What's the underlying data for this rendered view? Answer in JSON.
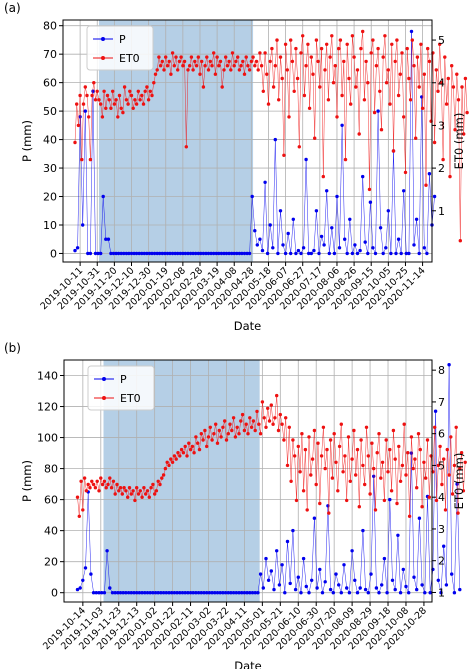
{
  "colors": {
    "p": "#0000ee",
    "et0": "#ee1111",
    "shade": "#b5cfe6",
    "grid": "#b0b0b0"
  },
  "chart_data": [
    {
      "type": "line",
      "panel_label": "(a)",
      "xlabel": "Date",
      "ylabel_left": "P (mm)",
      "ylabel_right": "ET0 (mm)",
      "grid": true,
      "legend_position": "top-left",
      "x_range": [
        "2019-09-21",
        "2020-11-25"
      ],
      "ylim_left": [
        -3,
        82
      ],
      "ylim_right": [
        -0.2,
        5.47
      ],
      "yticks_left": [
        0,
        10,
        20,
        30,
        40,
        50,
        60,
        70,
        80
      ],
      "yticks_right": [
        1,
        2,
        3,
        4,
        5
      ],
      "xticks": [
        "2019-10-11",
        "2019-10-31",
        "2019-11-20",
        "2019-12-10",
        "2019-12-30",
        "2020-01-19",
        "2020-02-08",
        "2020-02-28",
        "2020-03-19",
        "2020-04-08",
        "2020-04-28",
        "2020-05-18",
        "2020-06-07",
        "2020-06-27",
        "2020-07-17",
        "2020-08-06",
        "2020-08-26",
        "2020-09-15",
        "2020-10-05",
        "2020-10-25",
        "2020-11-14"
      ],
      "shaded_period": [
        "2019-11-02",
        "2020-04-30"
      ],
      "series": [
        {
          "name": "P",
          "axis": "left",
          "x_start": "2019-10-05",
          "x_step_days": 3,
          "values": [
            1,
            2,
            48,
            10,
            50,
            0,
            0,
            57,
            0,
            0,
            0,
            20,
            5,
            5,
            0,
            0,
            0,
            0,
            0,
            0,
            0,
            0,
            0,
            0,
            0,
            0,
            0,
            0,
            0,
            0,
            0,
            0,
            0,
            0,
            0,
            0,
            0,
            0,
            0,
            0,
            0,
            0,
            0,
            0,
            0,
            0,
            0,
            0,
            0,
            0,
            0,
            0,
            0,
            0,
            0,
            0,
            0,
            0,
            0,
            0,
            0,
            0,
            0,
            0,
            0,
            0,
            0,
            0,
            0,
            20,
            8,
            3,
            5,
            1,
            25,
            0,
            10,
            2,
            40,
            0,
            15,
            3,
            0,
            7,
            0,
            12,
            0,
            1,
            0,
            2,
            33,
            0,
            0,
            1,
            15,
            0,
            6,
            3,
            22,
            0,
            9,
            0,
            20,
            2,
            45,
            5,
            0,
            12,
            0,
            3,
            0,
            1,
            27,
            4,
            0,
            18,
            2,
            0,
            50,
            9,
            0,
            2,
            15,
            0,
            36,
            0,
            5,
            0,
            22,
            0,
            0,
            78,
            3,
            12,
            0,
            55,
            2,
            0,
            28,
            10,
            20
          ]
        },
        {
          "name": "ET0",
          "axis": "right",
          "x_start": "2019-10-05",
          "x_step_days": 2,
          "values": [
            2.6,
            3.5,
            3.0,
            3.7,
            2.2,
            3.5,
            3.9,
            3.7,
            3.2,
            2.2,
            3.7,
            4.0,
            3.6,
            3.8,
            3.6,
            3.5,
            3.2,
            3.8,
            3.4,
            3.7,
            3.6,
            3.4,
            3.8,
            3.5,
            3.6,
            3.2,
            3.7,
            3.4,
            3.3,
            3.9,
            3.6,
            3.5,
            3.8,
            3.7,
            3.4,
            3.6,
            3.5,
            3.8,
            3.6,
            3.7,
            3.5,
            3.8,
            3.9,
            3.6,
            3.8,
            3.7,
            4.0,
            4.2,
            4.3,
            4.6,
            4.4,
            4.5,
            4.3,
            4.6,
            4.4,
            4.5,
            4.2,
            4.7,
            4.4,
            4.6,
            4.3,
            4.5,
            4.6,
            4.4,
            4.5,
            2.5,
            4.3,
            4.4,
            4.6,
            4.3,
            4.5,
            4.4,
            4.6,
            4.2,
            4.5,
            3.9,
            4.4,
            4.6,
            4.3,
            4.5,
            4.4,
            4.7,
            4.2,
            4.6,
            4.4,
            4.5,
            3.9,
            4.3,
            4.6,
            4.4,
            4.5,
            4.3,
            4.7,
            4.4,
            4.5,
            4.6,
            4.3,
            4.4,
            4.5,
            4.2,
            4.6,
            4.4,
            4.3,
            4.5,
            4.6,
            4.4,
            4.5,
            4.3,
            4.7,
            4.4,
            3.8,
            4.7,
            4.2,
            3.5,
            4.5,
            4.8,
            3.9,
            4.4,
            5.0,
            3.6,
            4.6,
            4.1,
            2.3,
            4.9,
            4.3,
            3.2,
            5.0,
            4.5,
            3.8,
            4.8,
            4.1,
            2.5,
            4.7,
            5.1,
            3.7,
            4.4,
            4.9,
            3.4,
            4.6,
            4.2,
            2.7,
            5.0,
            4.5,
            3.9,
            4.8,
            1.8,
            4.3,
            4.9,
            3.6,
            4.6,
            5.1,
            4.0,
            4.4,
            3.2,
            4.8,
            5.0,
            3.7,
            4.5,
            2.2,
            4.9,
            4.1,
            3.5,
            5.1,
            4.6,
            3.9,
            4.3,
            2.8,
            4.8,
            5.2,
            3.6,
            4.5,
            4.0,
            1.5,
            4.7,
            5.0,
            3.3,
            4.4,
            4.8,
            3.8,
            2.9,
            4.6,
            5.1,
            4.0,
            4.3,
            3.5,
            4.9,
            2.4,
            4.5,
            5.0,
            3.7,
            4.2,
            4.7,
            3.2,
            1.9,
            4.8,
            4.1,
            3.6,
            5.0,
            4.4,
            2.7,
            4.6,
            3.9,
            4.9,
            3.4,
            4.2,
            1.6,
            4.8,
            4.5,
            3.1,
            4.7,
            2.6,
            4.3,
            3.8,
            4.9,
            4.0,
            2.2,
            4.6,
            3.5,
            4.1,
            1.8,
            4.4,
            3.9,
            2.9,
            4.2,
            3.6,
            0.3,
            3.9,
            2.8,
            4.1,
            3.3
          ]
        }
      ]
    },
    {
      "type": "line",
      "panel_label": "(b)",
      "xlabel": "Date",
      "ylabel_left": "P (mm)",
      "ylabel_right": "ET0 (mm)",
      "grid": true,
      "legend_position": "top-left",
      "x_range": [
        "2019-09-23",
        "2020-11-06"
      ],
      "ylim_left": [
        -6,
        150
      ],
      "ylim_right": [
        0.7,
        8.32
      ],
      "yticks_left": [
        0,
        20,
        40,
        60,
        80,
        100,
        120,
        140
      ],
      "yticks_right": [
        1,
        2,
        3,
        4,
        5,
        6,
        7,
        8
      ],
      "xticks": [
        "2019-10-14",
        "2019-11-03",
        "2019-11-23",
        "2019-12-13",
        "2020-01-02",
        "2020-01-22",
        "2020-02-11",
        "2020-03-02",
        "2020-03-22",
        "2020-04-11",
        "2020-05-01",
        "2020-05-21",
        "2020-06-10",
        "2020-06-30",
        "2020-07-20",
        "2020-08-09",
        "2020-08-29",
        "2020-09-18",
        "2020-10-08",
        "2020-10-28"
      ],
      "shaded_period": [
        "2019-11-06",
        "2020-04-28"
      ],
      "series": [
        {
          "name": "P",
          "axis": "left",
          "x_start": "2019-10-08",
          "x_step_days": 3,
          "values": [
            2,
            3,
            8,
            16,
            65,
            12,
            0,
            0,
            0,
            0,
            0,
            27,
            3,
            0,
            0,
            0,
            0,
            0,
            0,
            0,
            0,
            0,
            0,
            0,
            0,
            0,
            0,
            0,
            0,
            0,
            0,
            0,
            0,
            0,
            0,
            0,
            0,
            0,
            0,
            0,
            0,
            0,
            0,
            0,
            0,
            0,
            0,
            0,
            0,
            0,
            0,
            0,
            0,
            0,
            0,
            0,
            0,
            0,
            0,
            0,
            0,
            0,
            0,
            0,
            0,
            0,
            0,
            0,
            12,
            3,
            22,
            8,
            14,
            2,
            27,
            5,
            18,
            0,
            33,
            6,
            40,
            2,
            10,
            0,
            22,
            4,
            0,
            8,
            48,
            3,
            15,
            0,
            7,
            56,
            2,
            0,
            12,
            5,
            0,
            18,
            3,
            0,
            27,
            8,
            0,
            3,
            40,
            2,
            0,
            12,
            75,
            3,
            0,
            5,
            22,
            0,
            60,
            8,
            2,
            37,
            0,
            15,
            4,
            0,
            90,
            10,
            2,
            48,
            5,
            0,
            62,
            0,
            15,
            117,
            8,
            0,
            30,
            5,
            147,
            12,
            0,
            70,
            2
          ]
        },
        {
          "name": "ET0",
          "axis": "right",
          "x_start": "2019-10-08",
          "x_step_days": 2,
          "values": [
            4.0,
            3.4,
            4.5,
            3.6,
            4.6,
            4.2,
            4.4,
            4.3,
            4.5,
            4.4,
            4.3,
            4.5,
            4.2,
            4.6,
            4.4,
            4.5,
            4.3,
            4.4,
            4.6,
            4.3,
            4.5,
            4.1,
            4.4,
            4.2,
            4.3,
            4.1,
            4.3,
            4.2,
            4.0,
            4.3,
            4.1,
            4.2,
            3.9,
            4.3,
            4.1,
            4.2,
            4.0,
            4.3,
            4.1,
            4.2,
            4.0,
            4.3,
            4.4,
            4.1,
            4.2,
            4.5,
            4.4,
            4.6,
            4.7,
            4.9,
            5.1,
            5.0,
            5.2,
            5.1,
            5.3,
            5.2,
            5.4,
            5.3,
            5.5,
            5.4,
            5.6,
            5.3,
            5.7,
            5.5,
            5.6,
            5.4,
            5.9,
            5.7,
            5.5,
            6.0,
            5.8,
            6.1,
            5.6,
            5.9,
            6.2,
            5.8,
            6.0,
            6.3,
            5.7,
            6.1,
            5.9,
            6.2,
            6.4,
            5.8,
            6.0,
            6.3,
            6.1,
            6.5,
            5.9,
            6.2,
            6.0,
            6.4,
            6.6,
            6.1,
            6.3,
            6.0,
            6.5,
            6.2,
            6.4,
            6.1,
            6.7,
            6.3,
            6.0,
            7.0,
            6.5,
            6.2,
            6.8,
            6.4,
            6.9,
            6.3,
            6.5,
            7.2,
            6.1,
            6.6,
            6.3,
            5.8,
            6.5,
            5.0,
            6.2,
            4.5,
            5.8,
            5.3,
            3.9,
            5.6,
            4.8,
            6.0,
            4.2,
            5.5,
            3.6,
            5.9,
            4.7,
            5.2,
            6.1,
            4.4,
            5.7,
            3.8,
            5.3,
            6.2,
            4.9,
            5.5,
            3.5,
            5.8,
            4.6,
            6.0,
            5.1,
            4.2,
            5.6,
            6.3,
            4.8,
            5.3,
            3.9,
            5.9,
            4.5,
            5.2,
            6.1,
            4.7,
            5.5,
            3.7,
            5.8,
            5.0,
            4.4,
            6.2,
            5.3,
            4.1,
            5.7,
            4.9,
            3.6,
            5.4,
            6.0,
            4.6,
            5.1,
            3.9,
            5.8,
            4.8,
            5.5,
            4.2,
            6.1,
            5.2,
            3.8,
            5.6,
            4.5,
            5.0,
            6.3,
            4.7,
            5.4,
            3.4,
            5.9,
            4.9,
            5.2,
            4.3,
            6.0,
            5.5,
            3.7,
            5.1,
            4.6,
            5.8,
            4.0,
            5.3,
            4.8,
            6.2,
            3.9,
            5.0,
            5.6,
            4.4,
            5.2,
            3.6,
            5.5,
            4.7,
            5.9,
            4.1,
            5.0,
            6.2,
            3.5,
            4.9,
            5.4,
            4.2,
            5.1
          ]
        }
      ]
    }
  ]
}
